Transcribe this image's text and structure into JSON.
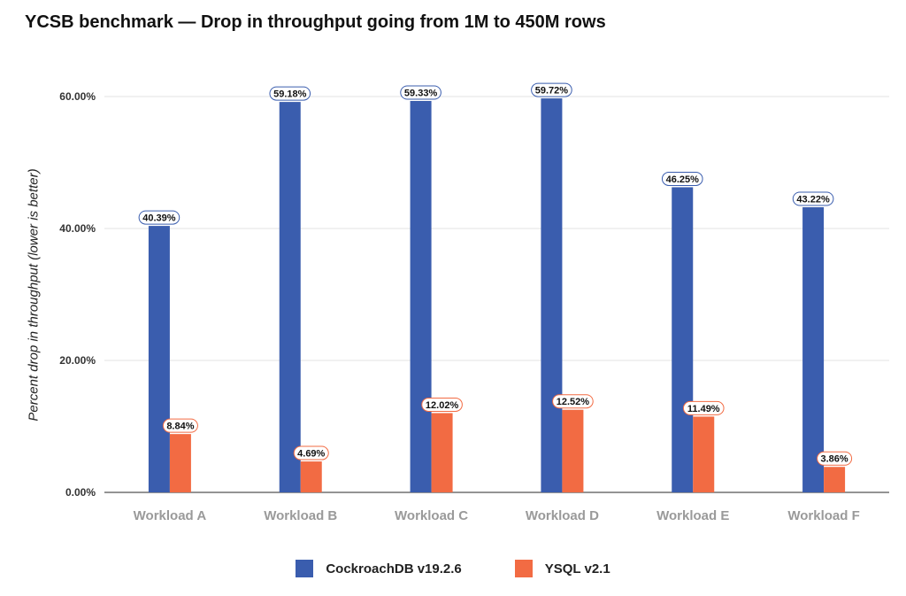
{
  "chart_data": {
    "type": "bar",
    "title": "YCSB benchmark — Drop in throughput going from 1M to 450M rows",
    "xlabel": "",
    "ylabel": "Percent drop in throughput (lower is better)",
    "categories": [
      "Workload A",
      "Workload B",
      "Workload C",
      "Workload D",
      "Workload E",
      "Workload F"
    ],
    "ylim": [
      0,
      60
    ],
    "yticks": [
      0,
      20,
      40,
      60
    ],
    "ytick_labels": [
      "0.00%",
      "20.00%",
      "40.00%",
      "60.00%"
    ],
    "grid": true,
    "legend_position": "bottom",
    "series": [
      {
        "name": "CockroachDB v19.2.6",
        "color": "#3a5dae",
        "values": [
          40.39,
          59.18,
          59.33,
          59.72,
          46.25,
          43.22
        ],
        "labels": [
          "40.39%",
          "59.18%",
          "59.33%",
          "59.72%",
          "46.25%",
          "43.22%"
        ]
      },
      {
        "name": "YSQL v2.1",
        "color": "#f26b43",
        "values": [
          8.84,
          4.69,
          12.02,
          12.52,
          11.49,
          3.86
        ],
        "labels": [
          "8.84%",
          "4.69%",
          "12.02%",
          "12.52%",
          "11.49%",
          "3.86%"
        ]
      }
    ]
  }
}
